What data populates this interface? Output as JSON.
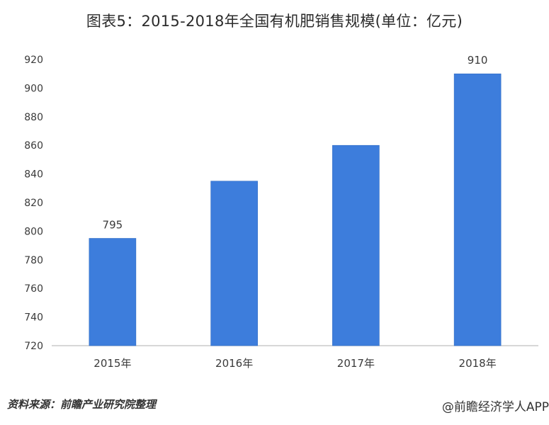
{
  "chart_data": {
    "type": "bar",
    "title": "图表5：2015-2018年全国有机肥销售规模(单位：亿元)",
    "categories": [
      "2015年",
      "2016年",
      "2017年",
      "2018年"
    ],
    "values": [
      795,
      835,
      860,
      910
    ],
    "data_labels": [
      "795",
      "",
      "",
      "910"
    ],
    "xlabel": "",
    "ylabel": "",
    "ylim": [
      720,
      920
    ],
    "yticks": [
      "720",
      "740",
      "760",
      "780",
      "800",
      "820",
      "840",
      "860",
      "880",
      "900",
      "920"
    ],
    "grid": false,
    "legend": "none",
    "bar_color": "#3d7ddc"
  },
  "footer": {
    "source": "资料来源：前瞻产业研究院整理",
    "brand": "@前瞻经济学人APP"
  }
}
